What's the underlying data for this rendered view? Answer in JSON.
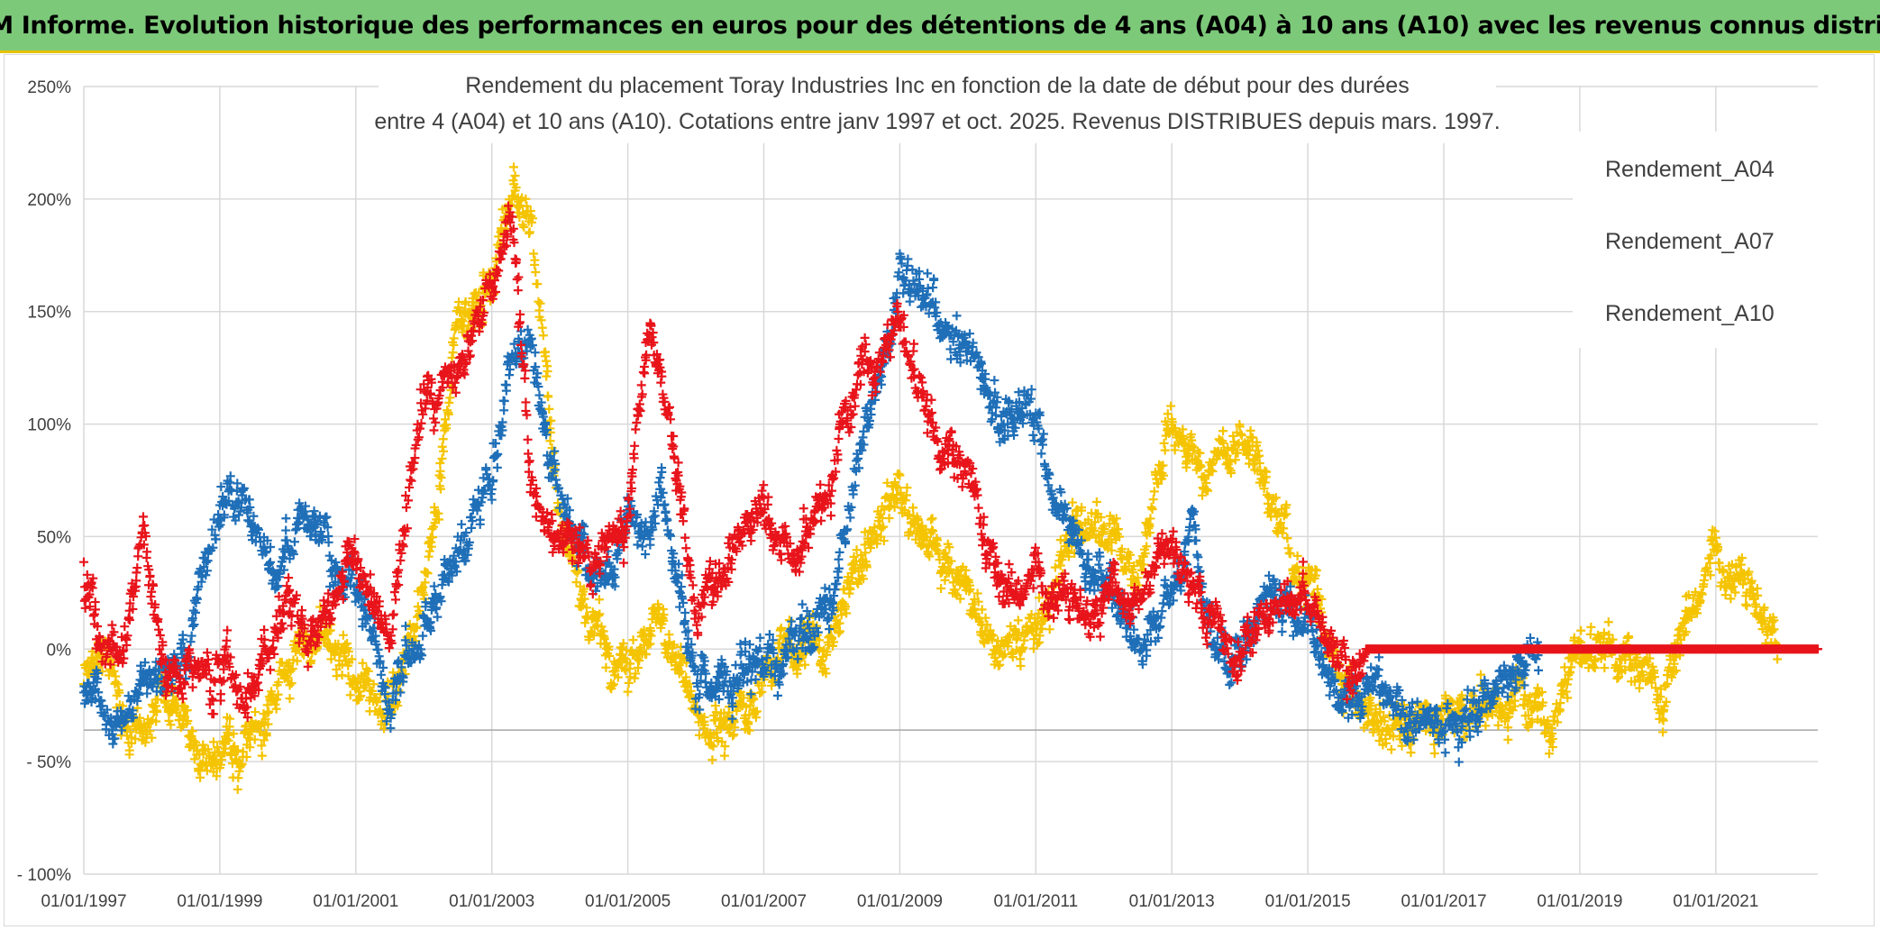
{
  "banner": {
    "title": "ADAM Informe. Evolution historique des performances en euros pour des détentions de 4 ans (A04) à 10 ans (A10) avec les revenus connus distribués"
  },
  "colors": {
    "banner_bg": "#7dc97a",
    "banner_border": "#e8c100",
    "A04": "#f5c400",
    "A07": "#1f6fb8",
    "A10": "#e8141b",
    "gridline": "#d9d9d9"
  },
  "chart_data": {
    "type": "scatter",
    "title_line1": "Rendement du placement Toray Industries Inc en fonction de la date de début pour des durées",
    "title_line2": "entre 4 (A04) et 10 ans (A10). Cotations entre janv 1997 et oct. 2025. Revenus DISTRIBUES depuis mars. 1997.",
    "xlabel": "",
    "ylabel": "",
    "x_ticks": [
      "01/01/1997",
      "01/01/1999",
      "01/01/2001",
      "01/01/2003",
      "01/01/2005",
      "01/01/2007",
      "01/01/2009",
      "01/01/2011",
      "01/01/2013",
      "01/01/2015",
      "01/01/2017",
      "01/01/2019",
      "01/01/2021"
    ],
    "x_range": [
      1997.0,
      2022.5
    ],
    "y_ticks": [
      "250%",
      "200%",
      "150%",
      "100%",
      "50%",
      "0%",
      "- 50%",
      "- 100%"
    ],
    "y_tick_values": [
      250,
      200,
      150,
      100,
      50,
      0,
      -50,
      -100
    ],
    "ylim": [
      -100,
      250
    ],
    "marker": "+",
    "legend_position": "right",
    "series": [
      {
        "name": "Rendement_A04",
        "color_key": "A04",
        "x_end": 2021.9,
        "x": [
          1997.0,
          1997.3,
          1997.6,
          1998.0,
          1998.3,
          1998.6,
          1999.0,
          1999.3,
          1999.6,
          2000.0,
          2000.5,
          2001.0,
          2001.5,
          2002.0,
          2002.5,
          2003.0,
          2003.3,
          2003.6,
          2004.0,
          2004.5,
          2005.0,
          2005.5,
          2006.0,
          2006.5,
          2007.0,
          2007.5,
          2008.0,
          2008.5,
          2009.0,
          2009.5,
          2010.0,
          2010.5,
          2011.0,
          2011.5,
          2012.0,
          2012.5,
          2013.0,
          2013.5,
          2014.0,
          2014.5,
          2015.0,
          2015.5,
          2016.0,
          2016.5,
          2017.0,
          2017.5,
          2018.0,
          2018.5,
          2019.0,
          2019.5,
          2020.0,
          2020.2,
          2020.6,
          2021.0,
          2021.5,
          2021.9
        ],
        "y": [
          -15,
          -5,
          -30,
          -35,
          -20,
          -45,
          -50,
          -55,
          -25,
          -5,
          5,
          -15,
          -25,
          20,
          145,
          160,
          200,
          190,
          60,
          0,
          -15,
          10,
          -35,
          -35,
          -10,
          0,
          5,
          45,
          65,
          40,
          25,
          0,
          10,
          45,
          60,
          30,
          100,
          70,
          100,
          65,
          30,
          -15,
          -30,
          -45,
          -35,
          -25,
          -20,
          -30,
          -5,
          5,
          -10,
          -20,
          20,
          40,
          25,
          10
        ]
      },
      {
        "name": "Rendement_A07",
        "color_key": "A07",
        "x_end": 2018.4,
        "x": [
          1997.0,
          1997.5,
          1998.0,
          1998.5,
          1999.0,
          1999.4,
          1999.8,
          2000.2,
          2000.6,
          2001.0,
          2001.5,
          2002.0,
          2002.5,
          2003.0,
          2003.3,
          2003.6,
          2004.0,
          2004.5,
          2005.0,
          2005.5,
          2006.0,
          2006.5,
          2007.0,
          2007.5,
          2008.0,
          2008.5,
          2009.0,
          2009.5,
          2010.0,
          2010.5,
          2011.0,
          2011.5,
          2012.0,
          2012.5,
          2013.0,
          2013.3,
          2013.6,
          2014.0,
          2014.5,
          2015.0,
          2015.5,
          2016.0,
          2016.5,
          2017.0,
          2017.5,
          2018.0,
          2018.4
        ],
        "y": [
          -25,
          -35,
          -20,
          -10,
          70,
          60,
          30,
          60,
          40,
          30,
          -20,
          10,
          40,
          80,
          130,
          140,
          60,
          30,
          50,
          70,
          -20,
          -10,
          -5,
          0,
          20,
          100,
          170,
          150,
          140,
          100,
          110,
          50,
          30,
          10,
          20,
          60,
          -5,
          0,
          25,
          10,
          -30,
          -20,
          -30,
          -35,
          -25,
          -10,
          0
        ]
      },
      {
        "name": "Rendement_A10",
        "color_key": "A10",
        "x_end": 2022.5,
        "x": [
          1997.0,
          1997.3,
          1997.6,
          1997.9,
          1998.2,
          1998.5,
          1999.0,
          1999.5,
          2000.0,
          2000.5,
          2001.0,
          2001.5,
          2002.0,
          2002.5,
          2003.0,
          2003.3,
          2003.6,
          2004.0,
          2004.5,
          2005.0,
          2005.3,
          2005.6,
          2006.0,
          2006.5,
          2007.0,
          2007.5,
          2008.0,
          2008.5,
          2009.0,
          2009.5,
          2010.0,
          2010.5,
          2011.0,
          2011.5,
          2012.0,
          2012.5,
          2013.0,
          2013.5,
          2014.0,
          2014.5,
          2015.0,
          2015.5,
          2015.8,
          2016.0,
          2017.0,
          2018.0,
          2019.0,
          2020.0,
          2021.0,
          2022.5
        ],
        "y": [
          30,
          0,
          -5,
          50,
          -10,
          0,
          -15,
          -20,
          25,
          5,
          40,
          10,
          110,
          120,
          170,
          190,
          70,
          50,
          40,
          60,
          140,
          100,
          20,
          40,
          60,
          45,
          80,
          130,
          140,
          100,
          80,
          30,
          30,
          20,
          20,
          20,
          40,
          10,
          0,
          15,
          25,
          -15,
          0,
          0,
          0,
          0,
          0,
          0,
          0,
          0
        ]
      }
    ]
  }
}
